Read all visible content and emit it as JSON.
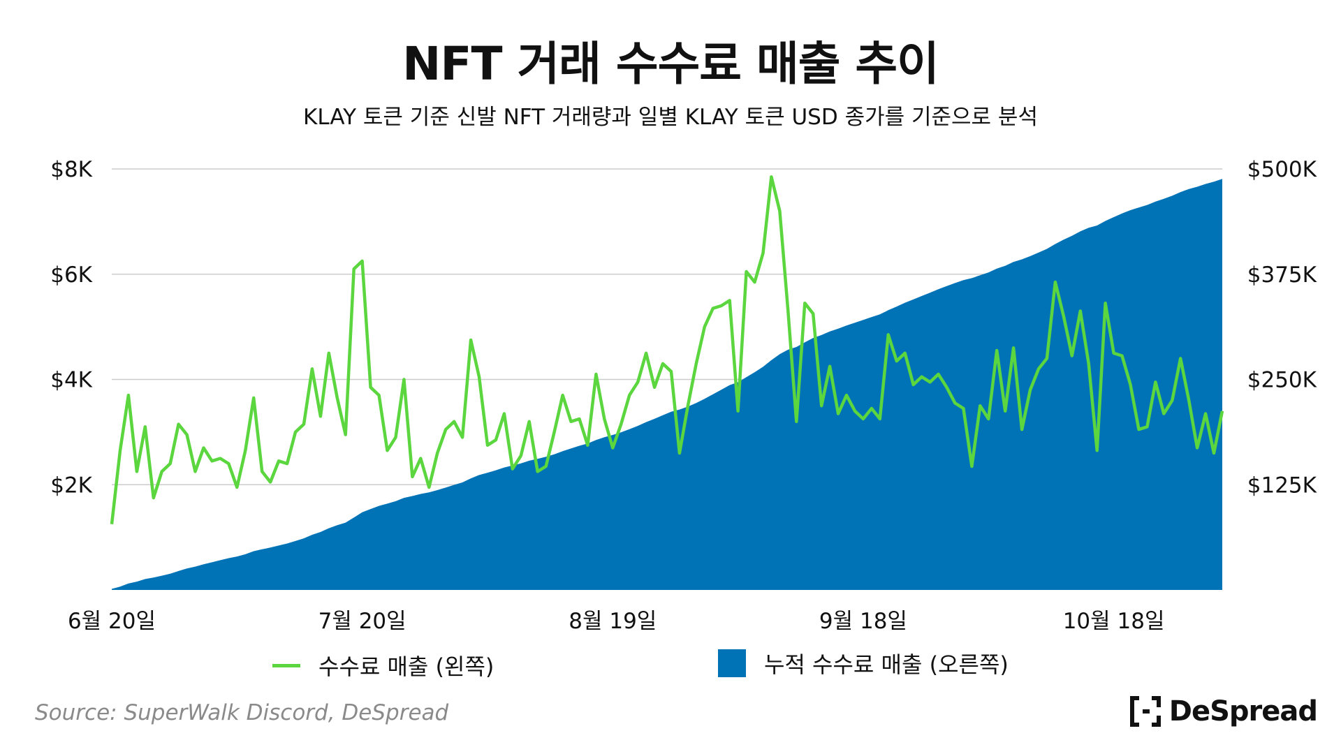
{
  "title": "NFT 거래 수수료 매출 추이",
  "subtitle": "KLAY 토큰 기준 신발 NFT 거래량과 일별 KLAY 토큰 USD 종가를 기준으로 분석",
  "legend": {
    "fee": "수수료 매출 (왼쪽)",
    "cumulative": "누적 수수료 매출 (오른쪽)"
  },
  "source": "Source: SuperWalk Discord, DeSpread",
  "brand": "DeSpread",
  "colors": {
    "line": "#5bd63f",
    "area": "#0073b7",
    "grid": "#cccccc"
  },
  "chart_data": {
    "type": "line",
    "x_tick_labels": [
      "6월 20일",
      "7월 20일",
      "8월 19일",
      "9월 18일",
      "10월 18일"
    ],
    "x_tick_index": [
      0,
      30,
      60,
      90,
      120
    ],
    "y_left": {
      "ticks": [
        "$2K",
        "$4K",
        "$6K",
        "$8K"
      ],
      "tick_values": [
        2000,
        4000,
        6000,
        8000
      ],
      "range": [
        0,
        8000
      ]
    },
    "y_right": {
      "ticks": [
        "$125K",
        "$250K",
        "$375K",
        "$500K"
      ],
      "tick_values": [
        125000,
        250000,
        375000,
        500000
      ],
      "range": [
        0,
        500000
      ]
    },
    "grid": true,
    "series": [
      {
        "name": "수수료 매출 (왼쪽)",
        "type": "line",
        "axis": "left",
        "values": [
          1250,
          2650,
          3700,
          2250,
          3100,
          1750,
          2250,
          2400,
          3150,
          2950,
          2250,
          2700,
          2450,
          2500,
          2400,
          1950,
          2650,
          3650,
          2250,
          2050,
          2450,
          2400,
          3000,
          3150,
          4200,
          3300,
          4500,
          3650,
          2950,
          6100,
          6250,
          3850,
          3700,
          2650,
          2900,
          4000,
          2150,
          2500,
          1950,
          2600,
          3050,
          3200,
          2900,
          4750,
          4050,
          2750,
          2850,
          3350,
          2300,
          2550,
          3200,
          2250,
          2350,
          3000,
          3700,
          3200,
          3250,
          2750,
          4100,
          3250,
          2700,
          3150,
          3700,
          3950,
          4500,
          3850,
          4300,
          4150,
          2600,
          3500,
          4300,
          5000,
          5350,
          5400,
          5500,
          3400,
          6050,
          5850,
          6400,
          7850,
          7200,
          5300,
          3200,
          5450,
          5250,
          3500,
          4250,
          3350,
          3700,
          3400,
          3250,
          3450,
          3250,
          4850,
          4350,
          4500,
          3900,
          4050,
          3950,
          4100,
          3850,
          3550,
          3450,
          2350,
          3500,
          3250,
          4550,
          3400,
          4600,
          3050,
          3800,
          4200,
          4400,
          5850,
          5200,
          4450,
          5300,
          4300,
          2650,
          5450,
          4500,
          4450,
          3900,
          3050,
          3100,
          3950,
          3350,
          3600,
          4400,
          3600,
          2700,
          3350,
          2600,
          3400
        ]
      },
      {
        "name": "누적 수수료 매출 (오른쪽)",
        "type": "area",
        "axis": "right"
      }
    ]
  }
}
